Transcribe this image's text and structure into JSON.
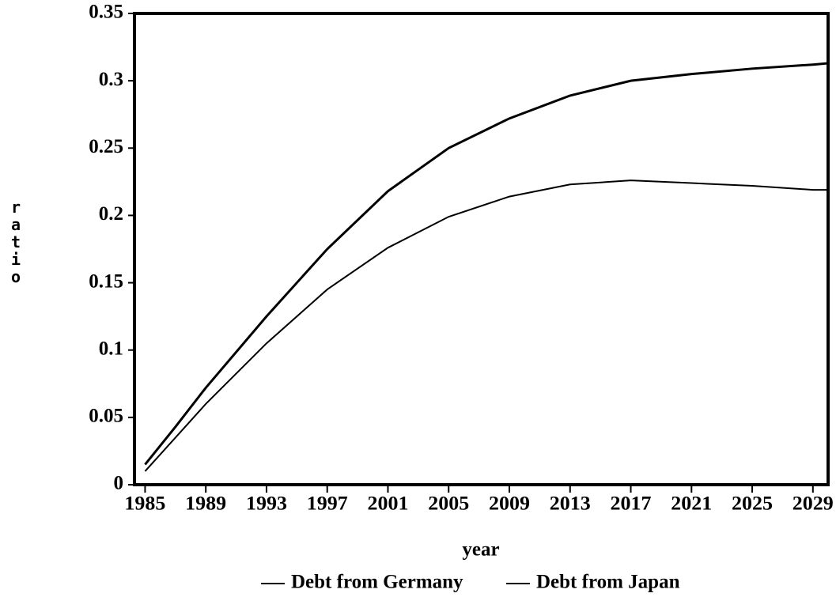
{
  "chart_data": {
    "type": "line",
    "x_label": "year",
    "y_label": "ratio",
    "x": [
      1985,
      1987,
      1989,
      1993,
      1997,
      2001,
      2005,
      2009,
      2013,
      2017,
      2021,
      2025,
      2029,
      2030
    ],
    "series": [
      {
        "name": "Debt from Germany",
        "color": "#000000",
        "values": [
          0.015,
          0.043,
          0.072,
          0.125,
          0.175,
          0.218,
          0.25,
          0.272,
          0.289,
          0.3,
          0.305,
          0.309,
          0.312,
          0.313
        ]
      },
      {
        "name": "Debt from Japan",
        "color": "#000000",
        "values": [
          0.01,
          0.035,
          0.06,
          0.105,
          0.145,
          0.176,
          0.199,
          0.214,
          0.223,
          0.226,
          0.224,
          0.222,
          0.219,
          0.219
        ]
      }
    ],
    "xlim": [
      1984.3,
      2030
    ],
    "xticks": [
      1985,
      1989,
      1993,
      1997,
      2001,
      2005,
      2009,
      2013,
      2017,
      2021,
      2025,
      2029
    ],
    "ylim": [
      0,
      0.35
    ],
    "yticks": [
      0,
      0.05,
      0.1,
      0.15,
      0.2,
      0.25,
      0.3,
      0.35
    ],
    "grid": false,
    "legend": "bottom"
  }
}
